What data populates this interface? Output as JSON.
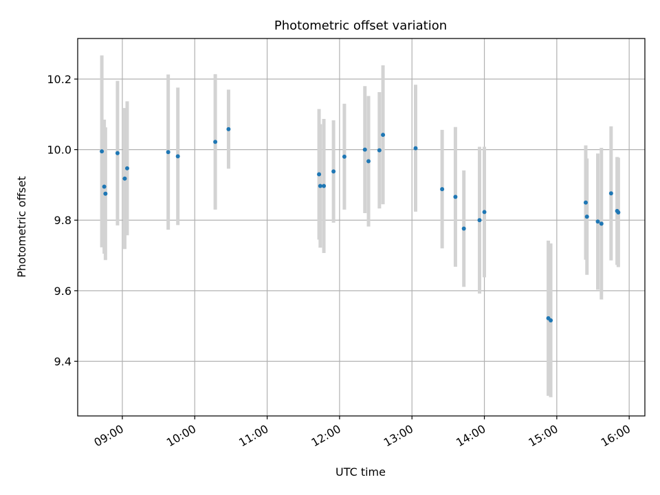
{
  "chart_data": {
    "type": "scatter",
    "title": "Photometric offset variation",
    "xlabel": "UTC time",
    "ylabel": "Photometric offset",
    "x_tick_labels": [
      "09:00",
      "10:00",
      "11:00",
      "12:00",
      "13:00",
      "14:00",
      "15:00",
      "16:00"
    ],
    "y_ticks": [
      9.4,
      9.6,
      9.8,
      10.0,
      10.2
    ],
    "y_tick_labels": [
      "9.4",
      "9.6",
      "9.8",
      "10.0",
      "10.2"
    ],
    "xlim": [
      "08:23",
      "16:13"
    ],
    "ylim": [
      9.245,
      10.315
    ],
    "grid": true,
    "colors": {
      "point": "#1f77b4",
      "errorbar": "#d3d3d3",
      "grid": "#b0b0b0"
    },
    "points": [
      {
        "t": "08:43",
        "y": 9.995,
        "err": 0.272
      },
      {
        "t": "08:45",
        "y": 9.895,
        "err": 0.19
      },
      {
        "t": "08:46",
        "y": 9.875,
        "err": 0.188
      },
      {
        "t": "08:56",
        "y": 9.99,
        "err": 0.205
      },
      {
        "t": "09:02",
        "y": 9.918,
        "err": 0.2
      },
      {
        "t": "09:04",
        "y": 9.947,
        "err": 0.19
      },
      {
        "t": "09:38",
        "y": 9.993,
        "err": 0.22
      },
      {
        "t": "09:46",
        "y": 9.981,
        "err": 0.195
      },
      {
        "t": "10:17",
        "y": 10.022,
        "err": 0.192
      },
      {
        "t": "10:28",
        "y": 10.058,
        "err": 0.112
      },
      {
        "t": "11:43",
        "y": 9.93,
        "err": 0.185
      },
      {
        "t": "11:44",
        "y": 9.897,
        "err": 0.175
      },
      {
        "t": "11:47",
        "y": 9.897,
        "err": 0.19
      },
      {
        "t": "11:55",
        "y": 9.938,
        "err": 0.145
      },
      {
        "t": "12:04",
        "y": 9.98,
        "err": 0.15
      },
      {
        "t": "12:21",
        "y": 10.0,
        "err": 0.18
      },
      {
        "t": "12:24",
        "y": 9.967,
        "err": 0.185
      },
      {
        "t": "12:33",
        "y": 9.998,
        "err": 0.165
      },
      {
        "t": "12:36",
        "y": 10.042,
        "err": 0.197
      },
      {
        "t": "13:03",
        "y": 10.004,
        "err": 0.18
      },
      {
        "t": "13:25",
        "y": 9.888,
        "err": 0.168
      },
      {
        "t": "13:36",
        "y": 9.866,
        "err": 0.198
      },
      {
        "t": "13:43",
        "y": 9.776,
        "err": 0.165
      },
      {
        "t": "13:56",
        "y": 9.8,
        "err": 0.208
      },
      {
        "t": "14:00",
        "y": 9.823,
        "err": 0.185
      },
      {
        "t": "14:53",
        "y": 9.522,
        "err": 0.22
      },
      {
        "t": "14:55",
        "y": 9.516,
        "err": 0.218
      },
      {
        "t": "15:24",
        "y": 9.85,
        "err": 0.162
      },
      {
        "t": "15:25",
        "y": 9.81,
        "err": 0.165
      },
      {
        "t": "15:34",
        "y": 9.796,
        "err": 0.193
      },
      {
        "t": "15:37",
        "y": 9.79,
        "err": 0.215
      },
      {
        "t": "15:45",
        "y": 9.876,
        "err": 0.19
      },
      {
        "t": "15:50",
        "y": 9.826,
        "err": 0.153
      },
      {
        "t": "15:51",
        "y": 9.822,
        "err": 0.155
      }
    ]
  }
}
